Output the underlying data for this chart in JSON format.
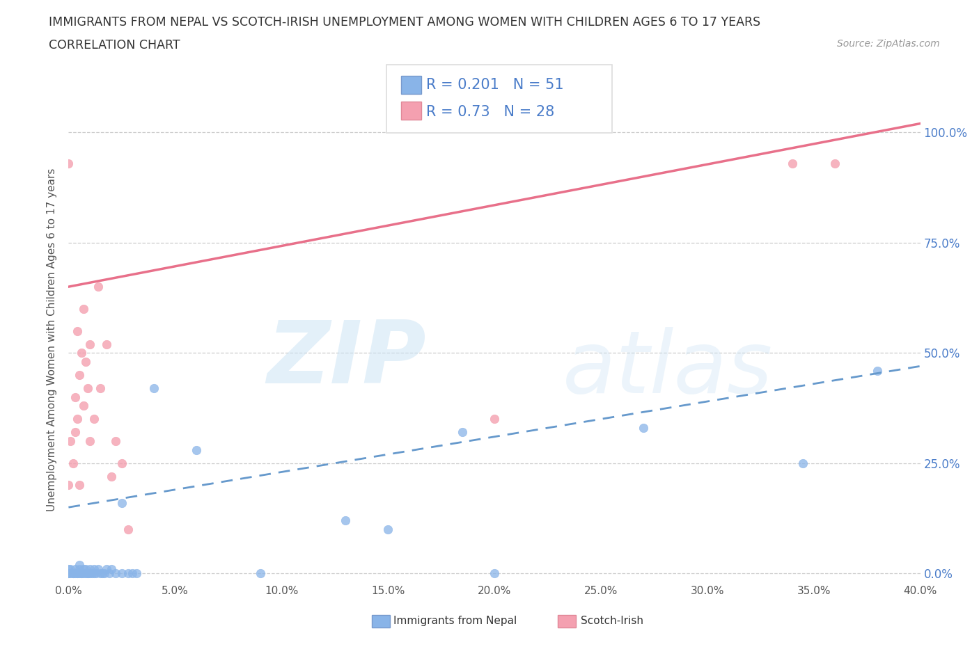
{
  "title_line1": "IMMIGRANTS FROM NEPAL VS SCOTCH-IRISH UNEMPLOYMENT AMONG WOMEN WITH CHILDREN AGES 6 TO 17 YEARS",
  "title_line2": "CORRELATION CHART",
  "source_text": "Source: ZipAtlas.com",
  "ylabel_label": "Unemployment Among Women with Children Ages 6 to 17 years",
  "xlim": [
    0.0,
    0.4
  ],
  "ylim": [
    -0.02,
    1.08
  ],
  "nepal_color": "#89b4e8",
  "scotch_color": "#f4a0b0",
  "scotch_line_color": "#e8708a",
  "nepal_line_color": "#6699cc",
  "nepal_R": 0.201,
  "nepal_N": 51,
  "scotch_R": 0.73,
  "scotch_N": 28,
  "legend_r_color": "#4a7cc9",
  "grid_color": "#cccccc",
  "bg_color": "#ffffff",
  "nepal_scatter": [
    [
      0.0,
      0.0
    ],
    [
      0.0,
      0.0
    ],
    [
      0.0,
      0.01
    ],
    [
      0.001,
      0.0
    ],
    [
      0.001,
      0.01
    ],
    [
      0.002,
      0.0
    ],
    [
      0.002,
      0.0
    ],
    [
      0.003,
      0.0
    ],
    [
      0.003,
      0.01
    ],
    [
      0.004,
      0.0
    ],
    [
      0.004,
      0.0
    ],
    [
      0.005,
      0.0
    ],
    [
      0.005,
      0.01
    ],
    [
      0.005,
      0.02
    ],
    [
      0.006,
      0.0
    ],
    [
      0.006,
      0.0
    ],
    [
      0.007,
      0.0
    ],
    [
      0.007,
      0.01
    ],
    [
      0.008,
      0.0
    ],
    [
      0.008,
      0.01
    ],
    [
      0.009,
      0.0
    ],
    [
      0.009,
      0.0
    ],
    [
      0.01,
      0.0
    ],
    [
      0.01,
      0.01
    ],
    [
      0.011,
      0.0
    ],
    [
      0.012,
      0.0
    ],
    [
      0.012,
      0.01
    ],
    [
      0.013,
      0.0
    ],
    [
      0.014,
      0.01
    ],
    [
      0.015,
      0.0
    ],
    [
      0.016,
      0.0
    ],
    [
      0.017,
      0.0
    ],
    [
      0.018,
      0.01
    ],
    [
      0.019,
      0.0
    ],
    [
      0.02,
      0.01
    ],
    [
      0.022,
      0.0
    ],
    [
      0.025,
      0.0
    ],
    [
      0.028,
      0.0
    ],
    [
      0.03,
      0.0
    ],
    [
      0.032,
      0.0
    ],
    [
      0.025,
      0.16
    ],
    [
      0.04,
      0.42
    ],
    [
      0.06,
      0.28
    ],
    [
      0.09,
      0.0
    ],
    [
      0.13,
      0.12
    ],
    [
      0.15,
      0.1
    ],
    [
      0.185,
      0.32
    ],
    [
      0.2,
      0.0
    ],
    [
      0.27,
      0.33
    ],
    [
      0.345,
      0.25
    ],
    [
      0.38,
      0.46
    ]
  ],
  "scotch_scatter": [
    [
      0.0,
      0.2
    ],
    [
      0.001,
      0.3
    ],
    [
      0.002,
      0.25
    ],
    [
      0.003,
      0.32
    ],
    [
      0.003,
      0.4
    ],
    [
      0.004,
      0.35
    ],
    [
      0.004,
      0.55
    ],
    [
      0.005,
      0.2
    ],
    [
      0.005,
      0.45
    ],
    [
      0.006,
      0.5
    ],
    [
      0.007,
      0.38
    ],
    [
      0.007,
      0.6
    ],
    [
      0.008,
      0.48
    ],
    [
      0.009,
      0.42
    ],
    [
      0.01,
      0.3
    ],
    [
      0.01,
      0.52
    ],
    [
      0.012,
      0.35
    ],
    [
      0.014,
      0.65
    ],
    [
      0.015,
      0.42
    ],
    [
      0.018,
      0.52
    ],
    [
      0.02,
      0.22
    ],
    [
      0.022,
      0.3
    ],
    [
      0.025,
      0.25
    ],
    [
      0.028,
      0.1
    ],
    [
      0.0,
      0.93
    ],
    [
      0.2,
      0.35
    ],
    [
      0.34,
      0.93
    ],
    [
      0.36,
      0.93
    ]
  ],
  "nepal_trend": [
    0.0,
    0.15,
    0.4,
    0.47
  ],
  "scotch_trend": [
    0.0,
    0.65,
    0.4,
    1.02
  ]
}
